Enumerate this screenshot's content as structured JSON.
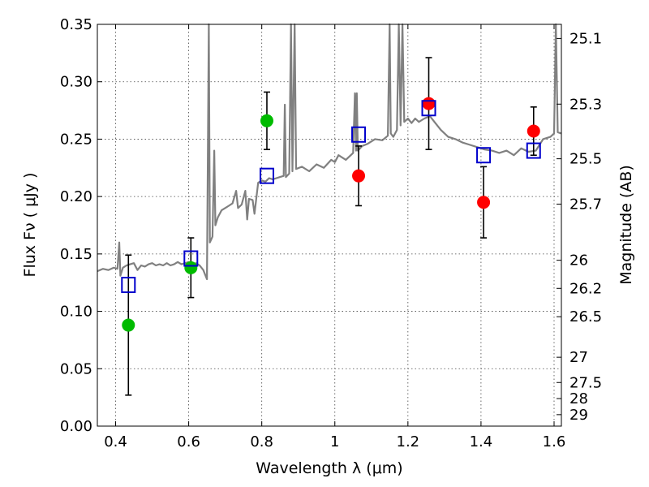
{
  "chart_data": {
    "type": "scatter",
    "xlabel": "Wavelength  λ (μm)",
    "ylabel": "Flux  Fν  ( μJy )",
    "y2label": "Magnitude (AB)",
    "xlim": [
      0.35,
      1.62
    ],
    "ylim": [
      0.0,
      0.35
    ],
    "grid": true,
    "x_ticks": [
      0.4,
      0.6,
      0.8,
      1.0,
      1.2,
      1.4,
      1.6
    ],
    "x_tick_labels": [
      "0.4",
      "0.6",
      "0.8",
      "1",
      "1.2",
      "1.4",
      "1.6"
    ],
    "y_ticks": [
      0.0,
      0.05,
      0.1,
      0.15,
      0.2,
      0.25,
      0.3,
      0.35
    ],
    "y_tick_labels": [
      "0.00",
      "0.05",
      "0.10",
      "0.15",
      "0.20",
      "0.25",
      "0.30",
      "0.35"
    ],
    "mag_ticks": [
      {
        "flux": 0.3377,
        "label": "25.1"
      },
      {
        "flux": 0.2805,
        "label": "25.3"
      },
      {
        "flux": 0.2329,
        "label": "25.5"
      },
      {
        "flux": 0.1934,
        "label": "25.7"
      },
      {
        "flux": 0.1445,
        "label": "26"
      },
      {
        "flux": 0.12,
        "label": "26.2"
      },
      {
        "flux": 0.0953,
        "label": "26.5"
      },
      {
        "flux": 0.06,
        "label": "27"
      },
      {
        "flux": 0.038,
        "label": "27.5"
      },
      {
        "flux": 0.024,
        "label": "28"
      },
      {
        "flux": 0.01,
        "label": "29"
      }
    ],
    "series": [
      {
        "kind": "observed",
        "color": "#00bb00",
        "points": [
          {
            "x": 0.435,
            "y": 0.088,
            "yerr": 0.061
          },
          {
            "x": 0.606,
            "y": 0.138,
            "yerr": 0.026
          },
          {
            "x": 0.814,
            "y": 0.266,
            "yerr": 0.025
          }
        ]
      },
      {
        "kind": "observed",
        "color": "#ff0000",
        "points": [
          {
            "x": 1.065,
            "y": 0.218,
            "yerr": 0.026
          },
          {
            "x": 1.257,
            "y": 0.281,
            "yerr": 0.04
          },
          {
            "x": 1.407,
            "y": 0.195,
            "yerr": 0.031
          },
          {
            "x": 1.544,
            "y": 0.257,
            "yerr": 0.021
          }
        ]
      },
      {
        "kind": "model_photometry",
        "color": "#0000cc",
        "points": [
          {
            "x": 0.435,
            "y": 0.123
          },
          {
            "x": 0.606,
            "y": 0.146
          },
          {
            "x": 0.814,
            "y": 0.218
          },
          {
            "x": 1.065,
            "y": 0.254
          },
          {
            "x": 1.257,
            "y": 0.277
          },
          {
            "x": 1.407,
            "y": 0.236
          },
          {
            "x": 1.544,
            "y": 0.24
          }
        ]
      },
      {
        "kind": "model_spectrum",
        "color": "#808080",
        "points": [
          [
            0.35,
            0.135
          ],
          [
            0.365,
            0.137
          ],
          [
            0.38,
            0.136
          ],
          [
            0.395,
            0.138
          ],
          [
            0.405,
            0.137
          ],
          [
            0.41,
            0.16
          ],
          [
            0.413,
            0.131
          ],
          [
            0.42,
            0.138
          ],
          [
            0.43,
            0.14
          ],
          [
            0.44,
            0.141
          ],
          [
            0.45,
            0.142
          ],
          [
            0.46,
            0.136
          ],
          [
            0.47,
            0.14
          ],
          [
            0.48,
            0.139
          ],
          [
            0.49,
            0.141
          ],
          [
            0.5,
            0.142
          ],
          [
            0.51,
            0.14
          ],
          [
            0.52,
            0.141
          ],
          [
            0.53,
            0.14
          ],
          [
            0.54,
            0.142
          ],
          [
            0.55,
            0.14
          ],
          [
            0.56,
            0.141
          ],
          [
            0.57,
            0.143
          ],
          [
            0.58,
            0.141
          ],
          [
            0.59,
            0.142
          ],
          [
            0.6,
            0.143
          ],
          [
            0.61,
            0.141
          ],
          [
            0.62,
            0.142
          ],
          [
            0.63,
            0.14
          ],
          [
            0.64,
            0.136
          ],
          [
            0.65,
            0.128
          ],
          [
            0.655,
            0.35
          ],
          [
            0.658,
            0.16
          ],
          [
            0.665,
            0.165
          ],
          [
            0.67,
            0.24
          ],
          [
            0.673,
            0.175
          ],
          [
            0.68,
            0.182
          ],
          [
            0.69,
            0.188
          ],
          [
            0.7,
            0.19
          ],
          [
            0.71,
            0.192
          ],
          [
            0.72,
            0.194
          ],
          [
            0.73,
            0.205
          ],
          [
            0.735,
            0.19
          ],
          [
            0.745,
            0.193
          ],
          [
            0.755,
            0.205
          ],
          [
            0.76,
            0.18
          ],
          [
            0.765,
            0.198
          ],
          [
            0.775,
            0.197
          ],
          [
            0.78,
            0.185
          ],
          [
            0.79,
            0.212
          ],
          [
            0.8,
            0.214
          ],
          [
            0.81,
            0.213
          ],
          [
            0.82,
            0.216
          ],
          [
            0.83,
            0.215
          ],
          [
            0.84,
            0.216
          ],
          [
            0.85,
            0.217
          ],
          [
            0.86,
            0.218
          ],
          [
            0.863,
            0.28
          ],
          [
            0.866,
            0.217
          ],
          [
            0.875,
            0.22
          ],
          [
            0.88,
            0.35
          ],
          [
            0.884,
            0.222
          ],
          [
            0.89,
            0.35
          ],
          [
            0.894,
            0.224
          ],
          [
            0.91,
            0.226
          ],
          [
            0.93,
            0.222
          ],
          [
            0.95,
            0.228
          ],
          [
            0.97,
            0.225
          ],
          [
            0.99,
            0.232
          ],
          [
            1.0,
            0.23
          ],
          [
            1.01,
            0.236
          ],
          [
            1.03,
            0.232
          ],
          [
            1.05,
            0.238
          ],
          [
            1.055,
            0.29
          ],
          [
            1.058,
            0.24
          ],
          [
            1.06,
            0.29
          ],
          [
            1.063,
            0.24
          ],
          [
            1.075,
            0.244
          ],
          [
            1.09,
            0.246
          ],
          [
            1.11,
            0.25
          ],
          [
            1.13,
            0.249
          ],
          [
            1.145,
            0.253
          ],
          [
            1.15,
            0.35
          ],
          [
            1.153,
            0.255
          ],
          [
            1.16,
            0.252
          ],
          [
            1.17,
            0.258
          ],
          [
            1.175,
            0.35
          ],
          [
            1.18,
            0.262
          ],
          [
            1.185,
            0.35
          ],
          [
            1.19,
            0.265
          ],
          [
            1.2,
            0.268
          ],
          [
            1.21,
            0.264
          ],
          [
            1.22,
            0.268
          ],
          [
            1.23,
            0.265
          ],
          [
            1.245,
            0.268
          ],
          [
            1.26,
            0.27
          ],
          [
            1.275,
            0.264
          ],
          [
            1.29,
            0.258
          ],
          [
            1.31,
            0.252
          ],
          [
            1.33,
            0.25
          ],
          [
            1.35,
            0.247
          ],
          [
            1.37,
            0.245
          ],
          [
            1.39,
            0.243
          ],
          [
            1.41,
            0.241
          ],
          [
            1.43,
            0.24
          ],
          [
            1.45,
            0.238
          ],
          [
            1.47,
            0.24
          ],
          [
            1.49,
            0.236
          ],
          [
            1.51,
            0.242
          ],
          [
            1.53,
            0.239
          ],
          [
            1.55,
            0.24
          ],
          [
            1.57,
            0.25
          ],
          [
            1.59,
            0.252
          ],
          [
            1.6,
            0.255
          ],
          [
            1.605,
            0.35
          ],
          [
            1.61,
            0.256
          ],
          [
            1.62,
            0.255
          ]
        ]
      }
    ]
  }
}
